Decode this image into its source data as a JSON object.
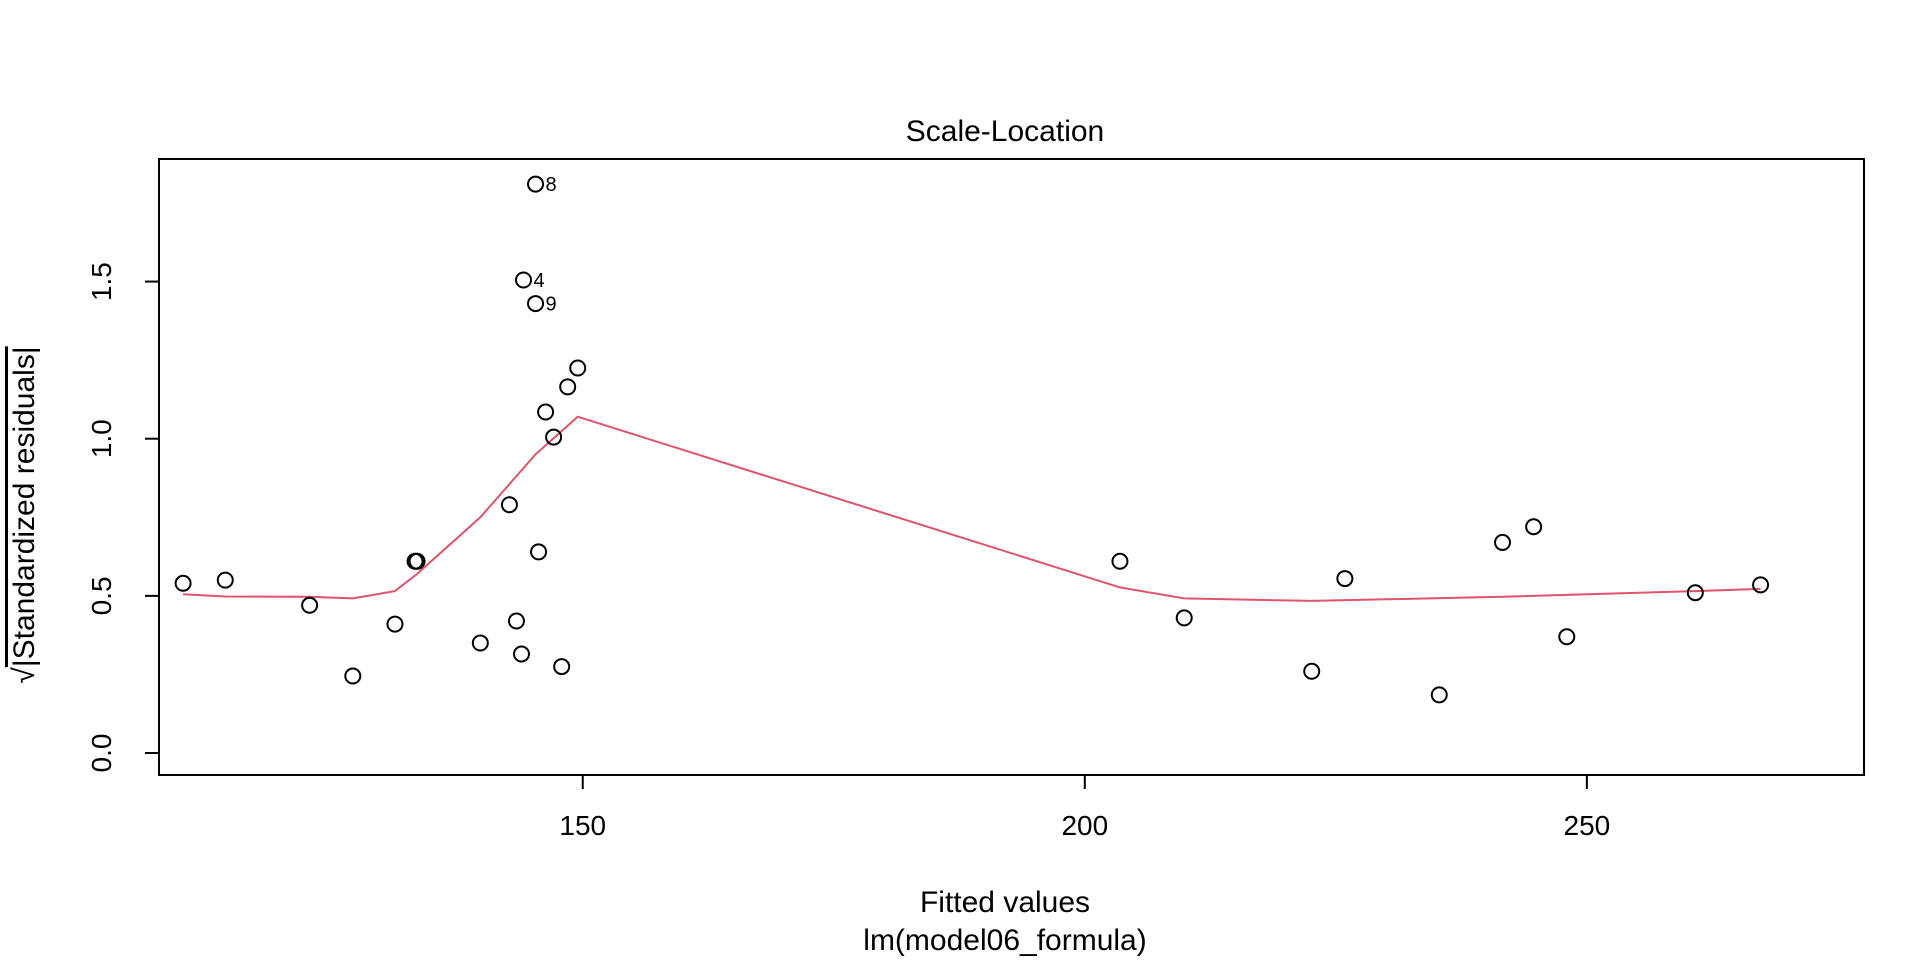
{
  "chart_data": {
    "type": "scatter",
    "title": "Scale-Location",
    "xlabel": "Fitted values",
    "sub": "lm(model06_formula)",
    "ylabel_radical": "√",
    "ylabel": "|Standardized residuals|",
    "xlim": [
      107.8,
      277.6
    ],
    "ylim": [
      -0.07,
      1.89
    ],
    "xticks": [
      150,
      200,
      250
    ],
    "yticks": [
      0.0,
      0.5,
      1.0,
      1.5
    ],
    "ytick_labels": [
      "0.0",
      "0.5",
      "1.0",
      "1.5"
    ],
    "points": [
      {
        "x": 110.2,
        "y": 0.54
      },
      {
        "x": 114.4,
        "y": 0.55
      },
      {
        "x": 122.8,
        "y": 0.47
      },
      {
        "x": 127.1,
        "y": 0.245
      },
      {
        "x": 131.3,
        "y": 0.41
      },
      {
        "x": 133.3,
        "y": 0.61
      },
      {
        "x": 133.5,
        "y": 0.61
      },
      {
        "x": 139.8,
        "y": 0.35
      },
      {
        "x": 142.7,
        "y": 0.79
      },
      {
        "x": 143.4,
        "y": 0.42
      },
      {
        "x": 143.9,
        "y": 0.315
      },
      {
        "x": 144.1,
        "y": 1.505,
        "label": "4"
      },
      {
        "x": 145.3,
        "y": 1.81,
        "label": "8"
      },
      {
        "x": 145.3,
        "y": 1.43,
        "label": "9"
      },
      {
        "x": 145.6,
        "y": 0.64
      },
      {
        "x": 146.3,
        "y": 1.085
      },
      {
        "x": 147.1,
        "y": 1.005
      },
      {
        "x": 147.9,
        "y": 0.275
      },
      {
        "x": 148.5,
        "y": 1.165
      },
      {
        "x": 149.5,
        "y": 1.225
      },
      {
        "x": 203.5,
        "y": 0.61
      },
      {
        "x": 209.9,
        "y": 0.43
      },
      {
        "x": 222.6,
        "y": 0.26
      },
      {
        "x": 225.9,
        "y": 0.555
      },
      {
        "x": 235.3,
        "y": 0.185
      },
      {
        "x": 241.6,
        "y": 0.67
      },
      {
        "x": 244.7,
        "y": 0.72
      },
      {
        "x": 248.0,
        "y": 0.37
      },
      {
        "x": 260.8,
        "y": 0.51
      },
      {
        "x": 267.3,
        "y": 0.535
      }
    ],
    "smooth": {
      "color": "#DF536B",
      "x": [
        110.2,
        114.4,
        122.8,
        127.1,
        131.3,
        133.5,
        139.8,
        145.3,
        149.5,
        203.5,
        209.9,
        222.6,
        241.6,
        260.8,
        267.3
      ],
      "y": [
        0.505,
        0.498,
        0.497,
        0.492,
        0.515,
        0.57,
        0.75,
        0.95,
        1.07,
        0.527,
        0.492,
        0.484,
        0.497,
        0.515,
        0.522
      ]
    },
    "grid": false,
    "legend": "none"
  }
}
